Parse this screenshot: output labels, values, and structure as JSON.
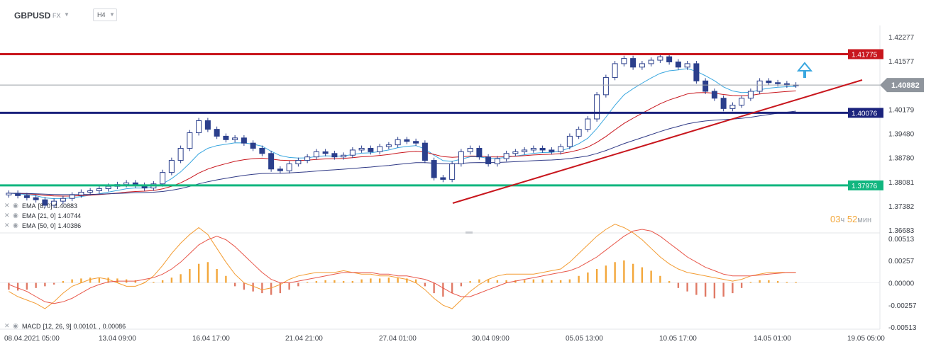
{
  "header": {
    "symbol": "GBPUSD",
    "market": "FX",
    "timeframe": "H4"
  },
  "timer": {
    "hours": "03",
    "hours_unit": "ч",
    "minutes": "52",
    "minutes_unit": "мин"
  },
  "colors": {
    "candle_up": "#ffffff",
    "candle_down": "#2b3f8c",
    "resistance": "#c8161d",
    "support_navy": "#1b237d",
    "support_green": "#11b67f",
    "ema8": "#3aa7df",
    "ema21": "#c8161d",
    "ema50": "#303a86",
    "macd_line": "#f39c32",
    "signal_line": "#e8574a",
    "hist_pos": "#f3a73a",
    "hist_neg": "#e07a66",
    "arrow": "#3aa7df"
  },
  "chart_data": [
    {
      "type": "candlestick",
      "symbol": "GBPUSD",
      "ylim": [
        1.36683,
        1.42277
      ],
      "y_ticks": [
        "1.42277",
        "1.41577",
        "1.40179",
        "1.39480",
        "1.38780",
        "1.38081",
        "1.37382",
        "1.36683"
      ],
      "x_ticks": [
        "08.04.2021 05:00",
        "13.04 09:00",
        "16.04 17:00",
        "21.04 21:00",
        "27.04 01:00",
        "30.04 09:00",
        "05.05 13:00",
        "10.05 17:00",
        "14.05 01:00",
        "19.05 05:00"
      ],
      "candles_approx_close": [
        1.3775,
        1.3768,
        1.3762,
        1.3756,
        1.374,
        1.3752,
        1.376,
        1.377,
        1.3778,
        1.3782,
        1.3788,
        1.3795,
        1.38,
        1.3805,
        1.3798,
        1.379,
        1.3802,
        1.3835,
        1.387,
        1.3905,
        1.395,
        1.3985,
        1.396,
        1.394,
        1.393,
        1.3935,
        1.392,
        1.3905,
        1.389,
        1.3845,
        1.384,
        1.386,
        1.387,
        1.388,
        1.3895,
        1.389,
        1.388,
        1.3885,
        1.39,
        1.3905,
        1.3895,
        1.391,
        1.3915,
        1.393,
        1.3925,
        1.392,
        1.387,
        1.382,
        1.3815,
        1.386,
        1.3895,
        1.3905,
        1.388,
        1.386,
        1.3875,
        1.389,
        1.3895,
        1.39,
        1.3905,
        1.39,
        1.3895,
        1.391,
        1.394,
        1.396,
        1.399,
        1.406,
        1.411,
        1.415,
        1.4165,
        1.414,
        1.415,
        1.416,
        1.417,
        1.4155,
        1.414,
        1.415,
        1.41,
        1.407,
        1.405,
        1.402,
        1.403,
        1.405,
        1.407,
        1.41,
        1.4095,
        1.4092,
        1.4088,
        1.40882
      ],
      "horizontal_levels": [
        {
          "label": "1.41775",
          "value": 1.41775,
          "color": "#c8161d"
        },
        {
          "label": "1.40076",
          "value": 1.40076,
          "color": "#1b237d"
        },
        {
          "label": "1.37976",
          "value": 1.37976,
          "color": "#11b67f"
        }
      ],
      "current_price": {
        "label": "1.40882",
        "value": 1.40882
      },
      "trendline": {
        "from": {
          "x": "30.04 00:00",
          "y": 1.3751
        },
        "to": {
          "x": "16.05 17:00",
          "y": 1.41
        }
      },
      "indicators": [
        {
          "name": "EMA",
          "params": "[8, 0]",
          "value": "1.40883",
          "color": "#3aa7df"
        },
        {
          "name": "EMA",
          "params": "[21, 0]",
          "value": "1.40744",
          "color": "#c8161d"
        },
        {
          "name": "EMA",
          "params": "[50, 0]",
          "value": "1.40386",
          "color": "#303a86"
        }
      ]
    },
    {
      "type": "bar",
      "name": "MACD",
      "params": "[12, 26, 9]",
      "values_label": [
        "0.00101",
        "0.00086"
      ],
      "ylim": [
        -0.00513,
        0.00513
      ],
      "y_ticks": [
        "0.00513",
        "0.00257",
        "0.00000",
        "-0.00257",
        "-0.00513"
      ],
      "histogram": [
        -0.0008,
        -0.0009,
        -0.0008,
        -0.0006,
        -0.0004,
        -0.0002,
        0.0002,
        0.0004,
        0.0005,
        0.0006,
        0.0006,
        0.0006,
        0.0005,
        0.0004,
        0.0003,
        0.0001,
        0.0001,
        0.0003,
        0.0006,
        0.001,
        0.0016,
        0.0022,
        0.0024,
        0.0016,
        0.0008,
        -0.0004,
        -0.0008,
        -0.001,
        -0.0012,
        -0.0014,
        -0.0012,
        -0.0008,
        -0.0004,
        0.0001,
        0.0002,
        0.0003,
        0.0003,
        0.0002,
        0.0002,
        0.0004,
        0.0005,
        0.0005,
        0.0006,
        0.0006,
        0.0005,
        0.0004,
        -0.0004,
        -0.0012,
        -0.0016,
        -0.0012,
        -0.0004,
        0.0002,
        0.0004,
        0.0004,
        0.0003,
        0.0003,
        0.0003,
        0.0003,
        0.0004,
        0.0004,
        0.0003,
        0.0003,
        0.0004,
        0.0008,
        0.0012,
        0.0016,
        0.002,
        0.0024,
        0.0026,
        0.0022,
        0.0018,
        0.0014,
        0.0008,
        0.0002,
        -0.0006,
        -0.001,
        -0.0014,
        -0.0016,
        -0.0018,
        -0.0016,
        -0.0012,
        -0.0006,
        0.0001,
        0.0003,
        0.0003,
        0.0002,
        0.0001,
        0.0001
      ],
      "macd_line": [
        -0.001,
        -0.0016,
        -0.002,
        -0.0024,
        -0.003,
        -0.0022,
        -0.0012,
        -0.0004,
        0.0,
        0.0004,
        0.0006,
        0.0004,
        0.0,
        -0.0004,
        -0.0004,
        0.0,
        0.0008,
        0.002,
        0.0034,
        0.0046,
        0.0056,
        0.0064,
        0.0056,
        0.004,
        0.0024,
        0.001,
        0.0,
        -0.0004,
        -0.0008,
        -0.0006,
        -0.0002,
        0.0004,
        0.0008,
        0.001,
        0.0012,
        0.0012,
        0.0012,
        0.0014,
        0.0012,
        0.001,
        0.001,
        0.0008,
        0.0008,
        0.0006,
        0.0004,
        0.0,
        -0.0008,
        -0.0018,
        -0.0026,
        -0.003,
        -0.002,
        -0.001,
        -0.0002,
        0.0004,
        0.0008,
        0.001,
        0.001,
        0.001,
        0.001,
        0.0012,
        0.0014,
        0.0016,
        0.0024,
        0.0034,
        0.0044,
        0.0054,
        0.0062,
        0.0068,
        0.0064,
        0.0058,
        0.005,
        0.004,
        0.003,
        0.0022,
        0.0016,
        0.0012,
        0.001,
        0.0008,
        0.0006,
        0.0004,
        0.0002,
        0.0004,
        0.0008,
        0.001,
        0.0012,
        0.0012,
        0.0012,
        0.0012
      ],
      "signal_line": [
        -0.0002,
        -0.0006,
        -0.001,
        -0.0016,
        -0.0022,
        -0.0024,
        -0.0022,
        -0.0018,
        -0.0012,
        -0.0006,
        -0.0002,
        0.0001,
        0.0002,
        0.0002,
        0.0002,
        0.0004,
        0.0006,
        0.001,
        0.0016,
        0.0024,
        0.0034,
        0.0044,
        0.005,
        0.0054,
        0.005,
        0.0042,
        0.0032,
        0.0022,
        0.0012,
        0.0004,
        0.0,
        0.0,
        0.0002,
        0.0004,
        0.0006,
        0.0008,
        0.001,
        0.0012,
        0.0012,
        0.0012,
        0.0012,
        0.001,
        0.001,
        0.0008,
        0.0008,
        0.0006,
        0.0004,
        0.0,
        -0.0006,
        -0.0012,
        -0.0016,
        -0.0016,
        -0.0012,
        -0.0008,
        -0.0004,
        0.0,
        0.0002,
        0.0004,
        0.0006,
        0.0008,
        0.001,
        0.0012,
        0.0014,
        0.0018,
        0.0024,
        0.003,
        0.0038,
        0.0046,
        0.0054,
        0.006,
        0.0062,
        0.006,
        0.0054,
        0.0046,
        0.0038,
        0.003,
        0.0024,
        0.0018,
        0.0014,
        0.001,
        0.0008,
        0.0008,
        0.0008,
        0.0009,
        0.001,
        0.0011,
        0.0012,
        0.0012
      ]
    }
  ]
}
